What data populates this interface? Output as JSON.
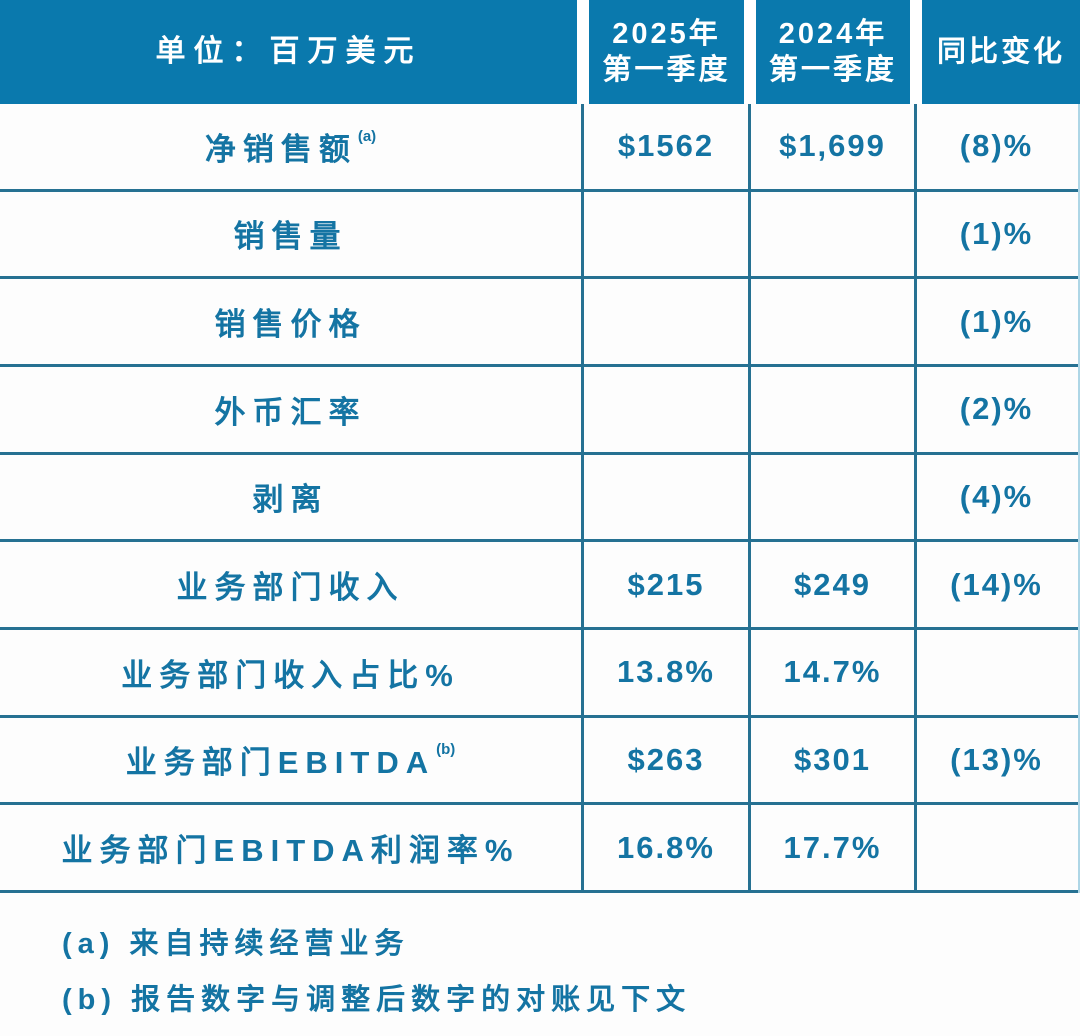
{
  "chart_data": {
    "type": "table",
    "columns": [
      "单位：百万美元",
      "2025年第一季度",
      "2024年第一季度",
      "同比变化"
    ],
    "rows": [
      [
        "净销售额(a)",
        "$1562",
        "$1,699",
        "(8)%"
      ],
      [
        "销售量",
        "",
        "",
        "(1)%"
      ],
      [
        "销售价格",
        "",
        "",
        "(1)%"
      ],
      [
        "外币汇率",
        "",
        "",
        "(2)%"
      ],
      [
        "剥离",
        "",
        "",
        "(4)%"
      ],
      [
        "业务部门收入",
        "$215",
        "$249",
        "(14)%"
      ],
      [
        "业务部门收入占比%",
        "13.8%",
        "14.7%",
        ""
      ],
      [
        "业务部门EBITDA(b)",
        "$263",
        "$301",
        "(13)%"
      ],
      [
        "业务部门EBITDA利润率%",
        "16.8%",
        "17.7%",
        ""
      ]
    ],
    "footnotes": [
      "(a) 来自持续经营业务",
      "(b) 报告数字与调整后数字的对账见下文"
    ]
  },
  "header": {
    "unit_label": "单位：百万美元",
    "col_2025_line1": "2025年",
    "col_2025_line2": "第一季度",
    "col_2024_line1": "2024年",
    "col_2024_line2": "第一季度",
    "col_yoy": "同比变化"
  },
  "rows": [
    {
      "label": "净销售额",
      "sup": "(a)",
      "v2025": "$1562",
      "v2024": "$1,699",
      "yoy": "(8)%"
    },
    {
      "label": "销售量",
      "v2025": "",
      "v2024": "",
      "yoy": "(1)%"
    },
    {
      "label": "销售价格",
      "v2025": "",
      "v2024": "",
      "yoy": "(1)%"
    },
    {
      "label": "外币汇率",
      "v2025": "",
      "v2024": "",
      "yoy": "(2)%"
    },
    {
      "label": "剥离",
      "v2025": "",
      "v2024": "",
      "yoy": "(4)%"
    },
    {
      "label": "业务部门收入",
      "v2025": "$215",
      "v2024": "$249",
      "yoy": "(14)%"
    },
    {
      "label": "业务部门收入占比%",
      "v2025": "13.8%",
      "v2024": "14.7%",
      "yoy": ""
    },
    {
      "label": "业务部门EBITDA",
      "sup": "(b)",
      "v2025": "$263",
      "v2024": "$301",
      "yoy": "(13)%"
    },
    {
      "label": "业务部门EBITDA利润率%",
      "v2025": "16.8%",
      "v2024": "17.7%",
      "yoy": ""
    }
  ],
  "footnotes": {
    "a": "(a) 来自持续经营业务",
    "b": "(b) 报告数字与调整后数字的对账见下文"
  },
  "colors": {
    "header_bg": "#0a79ad",
    "grid_line": "#267192",
    "text": "#1474a3",
    "header_text": "#ffffff"
  }
}
